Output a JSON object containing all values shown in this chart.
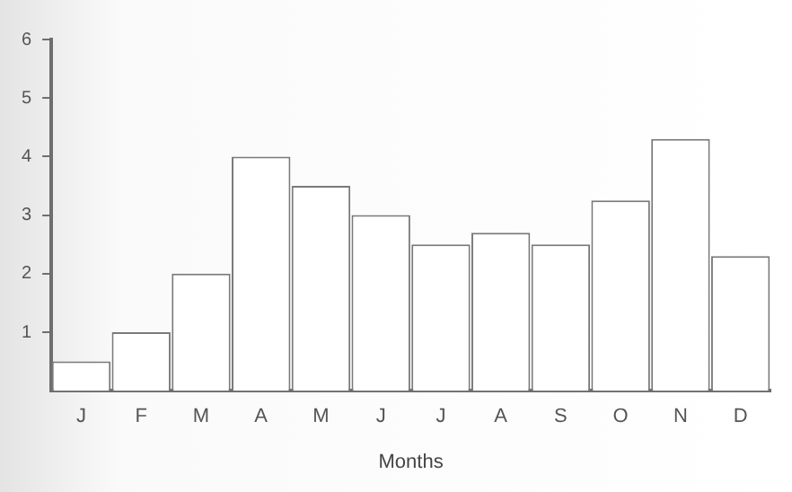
{
  "chart_data": {
    "type": "bar",
    "xlabel": "Months",
    "categories": [
      "J",
      "F",
      "M",
      "A",
      "M",
      "J",
      "J",
      "A",
      "S",
      "O",
      "N",
      "D"
    ],
    "values": [
      0.5,
      1,
      2,
      4,
      3.5,
      3,
      2.5,
      2.7,
      2.5,
      3.25,
      4.3,
      2.3
    ],
    "color": "#ffffff",
    "ylim": [
      0,
      6
    ],
    "yticks": [
      1,
      2,
      3,
      4,
      5,
      6
    ],
    "grid": false,
    "legend": false
  }
}
